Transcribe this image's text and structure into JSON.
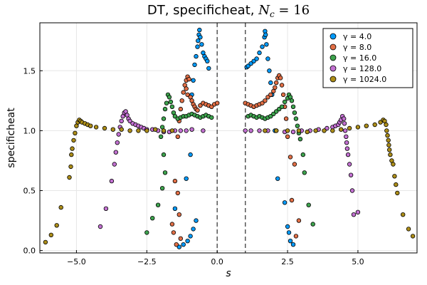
{
  "chart_data": {
    "type": "scatter",
    "title": "DT, specificheat, N_c = 16",
    "title_parts": {
      "prefix": "DT, specificheat, ",
      "var": "N",
      "sub": "c",
      "suffix": " = 16"
    },
    "xlabel": "s",
    "ylabel": "specificheat",
    "xlim": [
      -6.3,
      7.1
    ],
    "ylim": [
      -0.02,
      1.9
    ],
    "xticks": [
      -5.0,
      -2.5,
      0.0,
      2.5,
      5.0
    ],
    "xtick_labels": [
      "−5.0",
      "−2.5",
      "0.0",
      "2.5",
      "5.0"
    ],
    "yticks": [
      0.0,
      0.5,
      1.0,
      1.5
    ],
    "ytick_labels": [
      "0.0",
      "0.5",
      "1.0",
      "1.5"
    ],
    "grid": true,
    "legend_position": "top-right",
    "vlines": [
      0.0,
      1.0
    ],
    "series": [
      {
        "name": "γ = 4.0",
        "color": "#009AFA",
        "points": [
          [
            -1.35,
            0.03
          ],
          [
            -1.2,
            0.05
          ],
          [
            -1.05,
            0.08
          ],
          [
            -0.95,
            0.12
          ],
          [
            -0.85,
            0.18
          ],
          [
            -0.75,
            0.25
          ],
          [
            -1.5,
            0.35
          ],
          [
            -1.1,
            0.6
          ],
          [
            -0.95,
            0.8
          ],
          [
            -0.9,
            1.3
          ],
          [
            -0.85,
            1.42
          ],
          [
            -0.8,
            1.55
          ],
          [
            -0.75,
            1.62
          ],
          [
            -0.7,
            1.7
          ],
          [
            -0.68,
            1.75
          ],
          [
            -0.65,
            1.8
          ],
          [
            -0.63,
            1.84
          ],
          [
            -0.6,
            1.78
          ],
          [
            -0.55,
            1.72
          ],
          [
            -0.5,
            1.65
          ],
          [
            -0.45,
            1.62
          ],
          [
            -0.4,
            1.6
          ],
          [
            -0.35,
            1.58
          ],
          [
            -0.3,
            1.52
          ],
          [
            1.05,
            1.53
          ],
          [
            1.1,
            1.54
          ],
          [
            1.2,
            1.56
          ],
          [
            1.3,
            1.58
          ],
          [
            1.4,
            1.6
          ],
          [
            1.5,
            1.65
          ],
          [
            1.6,
            1.7
          ],
          [
            1.68,
            1.78
          ],
          [
            1.7,
            1.83
          ],
          [
            1.72,
            1.8
          ],
          [
            1.75,
            1.72
          ],
          [
            1.8,
            1.6
          ],
          [
            1.85,
            1.5
          ],
          [
            1.9,
            1.4
          ],
          [
            1.95,
            1.3
          ],
          [
            2.05,
            1.0
          ],
          [
            2.15,
            0.6
          ],
          [
            2.4,
            0.4
          ],
          [
            2.5,
            0.2
          ],
          [
            2.55,
            0.15
          ],
          [
            2.6,
            0.08
          ],
          [
            2.7,
            0.05
          ]
        ]
      },
      {
        "name": "γ = 8.0",
        "color": "#E26F46",
        "points": [
          [
            -1.45,
            0.05
          ],
          [
            -1.3,
            0.1
          ],
          [
            -1.55,
            0.15
          ],
          [
            -1.6,
            0.22
          ],
          [
            -1.35,
            0.3
          ],
          [
            -1.4,
            0.48
          ],
          [
            -1.5,
            0.58
          ],
          [
            -1.4,
            0.95
          ],
          [
            -1.35,
            1.08
          ],
          [
            -1.3,
            1.18
          ],
          [
            -1.25,
            1.25
          ],
          [
            -1.2,
            1.32
          ],
          [
            -1.15,
            1.38
          ],
          [
            -1.1,
            1.42
          ],
          [
            -1.05,
            1.45
          ],
          [
            -1.0,
            1.43
          ],
          [
            -1.1,
            1.35
          ],
          [
            -1.05,
            1.3
          ],
          [
            -0.95,
            1.28
          ],
          [
            -0.9,
            1.25
          ],
          [
            -0.85,
            1.22
          ],
          [
            -0.8,
            1.2
          ],
          [
            -0.75,
            1.18
          ],
          [
            -0.7,
            1.17
          ],
          [
            -0.6,
            1.21
          ],
          [
            -0.5,
            1.23
          ],
          [
            -0.4,
            1.22
          ],
          [
            -0.3,
            1.21
          ],
          [
            -0.2,
            1.2
          ],
          [
            -0.1,
            1.22
          ],
          [
            0.0,
            1.23
          ],
          [
            1.0,
            1.23
          ],
          [
            1.1,
            1.22
          ],
          [
            1.2,
            1.21
          ],
          [
            1.3,
            1.2
          ],
          [
            1.4,
            1.21
          ],
          [
            1.5,
            1.22
          ],
          [
            1.6,
            1.23
          ],
          [
            1.7,
            1.25
          ],
          [
            1.8,
            1.28
          ],
          [
            1.9,
            1.3
          ],
          [
            2.0,
            1.33
          ],
          [
            2.05,
            1.36
          ],
          [
            2.1,
            1.4
          ],
          [
            2.15,
            1.44
          ],
          [
            2.2,
            1.46
          ],
          [
            2.25,
            1.44
          ],
          [
            2.3,
            1.38
          ],
          [
            2.35,
            1.3
          ],
          [
            2.4,
            1.2
          ],
          [
            2.45,
            1.1
          ],
          [
            2.5,
            0.95
          ],
          [
            2.6,
            0.78
          ],
          [
            2.75,
            0.72
          ],
          [
            2.65,
            0.42
          ],
          [
            2.9,
            0.25
          ],
          [
            2.8,
            0.12
          ]
        ]
      },
      {
        "name": "γ = 16.0",
        "color": "#3EA44E",
        "points": [
          [
            -2.5,
            0.15
          ],
          [
            -2.3,
            0.27
          ],
          [
            -2.1,
            0.38
          ],
          [
            -1.95,
            0.52
          ],
          [
            -1.85,
            0.65
          ],
          [
            -1.9,
            0.8
          ],
          [
            -2.0,
            0.95
          ],
          [
            -1.95,
            1.03
          ],
          [
            -1.9,
            1.1
          ],
          [
            -1.85,
            1.18
          ],
          [
            -1.8,
            1.23
          ],
          [
            -1.75,
            1.3
          ],
          [
            -1.7,
            1.28
          ],
          [
            -1.65,
            1.24
          ],
          [
            -1.6,
            1.2
          ],
          [
            -1.55,
            1.15
          ],
          [
            -1.5,
            1.12
          ],
          [
            -1.4,
            1.1
          ],
          [
            -1.3,
            1.11
          ],
          [
            -1.2,
            1.12
          ],
          [
            -1.1,
            1.12
          ],
          [
            -1.0,
            1.13
          ],
          [
            -0.9,
            1.14
          ],
          [
            -0.8,
            1.13
          ],
          [
            -0.7,
            1.12
          ],
          [
            -0.6,
            1.11
          ],
          [
            -0.5,
            1.12
          ],
          [
            -0.4,
            1.13
          ],
          [
            -0.3,
            1.12
          ],
          [
            -0.2,
            1.11
          ],
          [
            1.1,
            1.12
          ],
          [
            1.2,
            1.13
          ],
          [
            1.3,
            1.12
          ],
          [
            1.4,
            1.11
          ],
          [
            1.5,
            1.12
          ],
          [
            1.6,
            1.11
          ],
          [
            1.7,
            1.1
          ],
          [
            1.8,
            1.11
          ],
          [
            1.9,
            1.12
          ],
          [
            2.0,
            1.14
          ],
          [
            2.1,
            1.16
          ],
          [
            2.2,
            1.18
          ],
          [
            2.3,
            1.2
          ],
          [
            2.4,
            1.24
          ],
          [
            2.5,
            1.27
          ],
          [
            2.55,
            1.3
          ],
          [
            2.6,
            1.28
          ],
          [
            2.65,
            1.25
          ],
          [
            2.7,
            1.2
          ],
          [
            2.75,
            1.15
          ],
          [
            2.8,
            1.1
          ],
          [
            2.85,
            1.04
          ],
          [
            2.9,
            0.98
          ],
          [
            2.95,
            0.93
          ],
          [
            3.05,
            0.8
          ],
          [
            3.1,
            0.65
          ],
          [
            3.25,
            0.38
          ],
          [
            3.4,
            0.22
          ]
        ]
      },
      {
        "name": "γ = 128.0",
        "color": "#C371D2",
        "points": [
          [
            -4.15,
            0.2
          ],
          [
            -3.95,
            0.35
          ],
          [
            -3.75,
            0.58
          ],
          [
            -3.65,
            0.72
          ],
          [
            -3.6,
            0.82
          ],
          [
            -3.55,
            0.9
          ],
          [
            -3.5,
            0.97
          ],
          [
            -3.45,
            1.03
          ],
          [
            -3.4,
            1.08
          ],
          [
            -3.35,
            1.12
          ],
          [
            -3.3,
            1.15
          ],
          [
            -3.25,
            1.16
          ],
          [
            -3.2,
            1.13
          ],
          [
            -3.15,
            1.1
          ],
          [
            -3.1,
            1.08
          ],
          [
            -3.0,
            1.06
          ],
          [
            -2.9,
            1.05
          ],
          [
            -2.8,
            1.04
          ],
          [
            -2.7,
            1.03
          ],
          [
            -2.6,
            1.02
          ],
          [
            -2.5,
            1.01
          ],
          [
            -2.3,
            1.01
          ],
          [
            -2.1,
            1.0
          ],
          [
            -1.9,
            0.99
          ],
          [
            -1.7,
            0.99
          ],
          [
            -1.5,
            1.0
          ],
          [
            -1.3,
            1.0
          ],
          [
            -1.1,
            1.0
          ],
          [
            -0.9,
            1.01
          ],
          [
            -0.5,
            1.0
          ],
          [
            1.0,
            1.0
          ],
          [
            1.2,
            1.0
          ],
          [
            1.5,
            1.0
          ],
          [
            1.8,
            1.0
          ],
          [
            2.1,
            1.0
          ],
          [
            2.4,
            0.99
          ],
          [
            2.7,
            0.99
          ],
          [
            3.0,
            1.0
          ],
          [
            3.3,
            1.0
          ],
          [
            3.6,
            1.01
          ],
          [
            3.9,
            1.02
          ],
          [
            4.1,
            1.03
          ],
          [
            4.2,
            1.04
          ],
          [
            4.3,
            1.05
          ],
          [
            4.35,
            1.07
          ],
          [
            4.4,
            1.09
          ],
          [
            4.45,
            1.12
          ],
          [
            4.5,
            1.1
          ],
          [
            4.52,
            1.06
          ],
          [
            4.55,
            1.0
          ],
          [
            4.58,
            0.95
          ],
          [
            4.6,
            0.9
          ],
          [
            4.62,
            0.85
          ],
          [
            4.65,
            0.8
          ],
          [
            4.7,
            0.72
          ],
          [
            4.75,
            0.63
          ],
          [
            4.8,
            0.5
          ],
          [
            4.85,
            0.3
          ],
          [
            5.0,
            0.32
          ]
        ]
      },
      {
        "name": "γ = 1024.0",
        "color": "#AC8D18",
        "points": [
          [
            -6.1,
            0.07
          ],
          [
            -5.9,
            0.13
          ],
          [
            -5.7,
            0.21
          ],
          [
            -5.55,
            0.36
          ],
          [
            -5.25,
            0.61
          ],
          [
            -5.2,
            0.7
          ],
          [
            -5.18,
            0.8
          ],
          [
            -5.15,
            0.85
          ],
          [
            -5.1,
            0.92
          ],
          [
            -5.05,
            0.98
          ],
          [
            -5.0,
            1.04
          ],
          [
            -4.95,
            1.07
          ],
          [
            -4.9,
            1.09
          ],
          [
            -4.85,
            1.08
          ],
          [
            -4.8,
            1.07
          ],
          [
            -4.7,
            1.06
          ],
          [
            -4.6,
            1.05
          ],
          [
            -4.5,
            1.04
          ],
          [
            -4.3,
            1.03
          ],
          [
            -4.0,
            1.02
          ],
          [
            -3.7,
            1.01
          ],
          [
            -3.4,
            1.01
          ],
          [
            -3.1,
            1.0
          ],
          [
            -2.8,
            1.0
          ],
          [
            -2.5,
            1.0
          ],
          [
            -2.2,
            1.01
          ],
          [
            -1.9,
            1.0
          ],
          [
            -1.6,
            1.0
          ],
          [
            1.7,
            1.0
          ],
          [
            2.1,
            1.0
          ],
          [
            2.5,
            1.0
          ],
          [
            2.9,
            1.0
          ],
          [
            3.2,
            0.99
          ],
          [
            3.5,
            1.0
          ],
          [
            3.8,
            1.0
          ],
          [
            4.1,
            1.0
          ],
          [
            4.4,
            1.01
          ],
          [
            4.7,
            1.02
          ],
          [
            5.0,
            1.03
          ],
          [
            5.3,
            1.04
          ],
          [
            5.6,
            1.05
          ],
          [
            5.8,
            1.07
          ],
          [
            5.9,
            1.09
          ],
          [
            5.95,
            1.08
          ],
          [
            6.0,
            1.05
          ],
          [
            6.02,
            1.0
          ],
          [
            6.05,
            0.96
          ],
          [
            6.08,
            0.92
          ],
          [
            6.1,
            0.88
          ],
          [
            6.12,
            0.84
          ],
          [
            6.15,
            0.8
          ],
          [
            6.2,
            0.75
          ],
          [
            6.25,
            0.72
          ],
          [
            6.3,
            0.62
          ],
          [
            6.35,
            0.55
          ],
          [
            6.4,
            0.48
          ],
          [
            6.6,
            0.3
          ],
          [
            6.8,
            0.18
          ],
          [
            6.95,
            0.12
          ]
        ]
      }
    ]
  }
}
